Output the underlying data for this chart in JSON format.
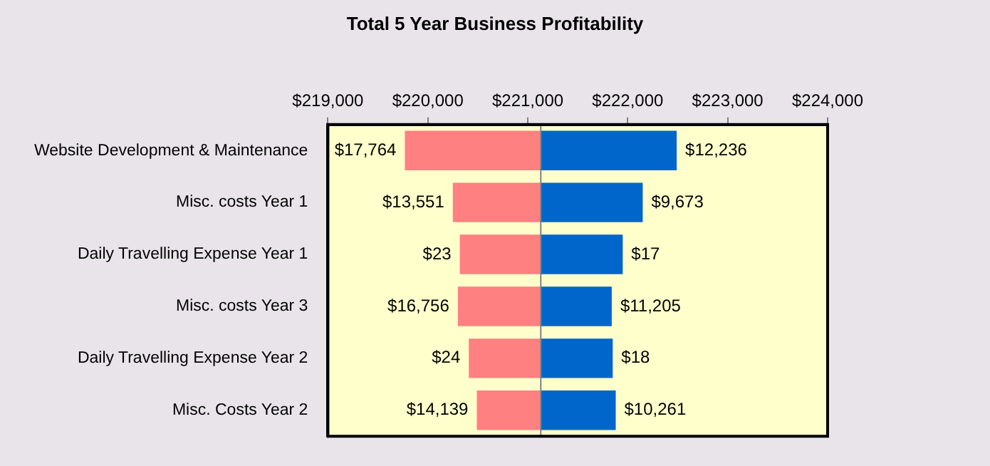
{
  "chart_data": {
    "type": "bar",
    "orientation": "horizontal",
    "title": "Total 5 Year Business Profitability",
    "categories": [
      "Website Development & Maintenance",
      "Misc. costs Year 1",
      "Daily Travelling Expense Year 1",
      "Misc. costs Year 3",
      "Daily Travelling Expense Year 2",
      "Misc. Costs Year 2"
    ],
    "series": [
      {
        "color": "#ff8080",
        "base": [
          219770,
          220250,
          220320,
          220300,
          220410,
          220490
        ],
        "values": [
          1360,
          880,
          810,
          830,
          720,
          640
        ]
      },
      {
        "color": "#0066cc",
        "base": [
          221130,
          221130,
          221130,
          221130,
          221130,
          221130
        ],
        "values": [
          1360,
          1020,
          820,
          710,
          720,
          750
        ]
      }
    ],
    "annotations": [
      {
        "text": "$17,764",
        "x": 219770,
        "y": "Website Development & Maintenance"
      },
      {
        "text": "$12,236",
        "x": 222490,
        "y": "Website Development & Maintenance"
      },
      {
        "text": "$13,551",
        "x": 220250,
        "y": "Misc. costs Year 1"
      },
      {
        "text": "$9,673",
        "x": 222150,
        "y": "Misc. costs Year 1"
      },
      {
        "text": "$23",
        "x": 220320,
        "y": "Daily Travelling Expense Year 1"
      },
      {
        "text": "$17",
        "x": 221950,
        "y": "Daily Travelling Expense Year 1"
      },
      {
        "text": "$16,756",
        "x": 220300,
        "y": "Misc. costs Year 3"
      },
      {
        "text": "$11,205",
        "x": 221840,
        "y": "Misc. costs Year 3"
      },
      {
        "text": "$24",
        "x": 220410,
        "y": "Daily Travelling Expense Year 2"
      },
      {
        "text": "$18",
        "x": 221850,
        "y": "Daily Travelling Expense Year 2"
      },
      {
        "text": "$14,139",
        "x": 220490,
        "y": "Misc. Costs Year 2"
      },
      {
        "text": "$10,261",
        "x": 221880,
        "y": "Misc. Costs Year 2"
      }
    ],
    "xlim": [
      219000,
      224000
    ],
    "xticks": [
      {
        "value": 219000,
        "label": "$219,000"
      },
      {
        "value": 220000,
        "label": "$220,000"
      },
      {
        "value": 221000,
        "label": "$221,000"
      },
      {
        "value": 222000,
        "label": "$222,000"
      },
      {
        "value": 223000,
        "label": "$223,000"
      },
      {
        "value": 224000,
        "label": "$224,000"
      }
    ],
    "ref_lines": [
      {
        "axis": "x",
        "value": 221130,
        "color": "#808080"
      }
    ],
    "grid": false,
    "legend": false
  }
}
